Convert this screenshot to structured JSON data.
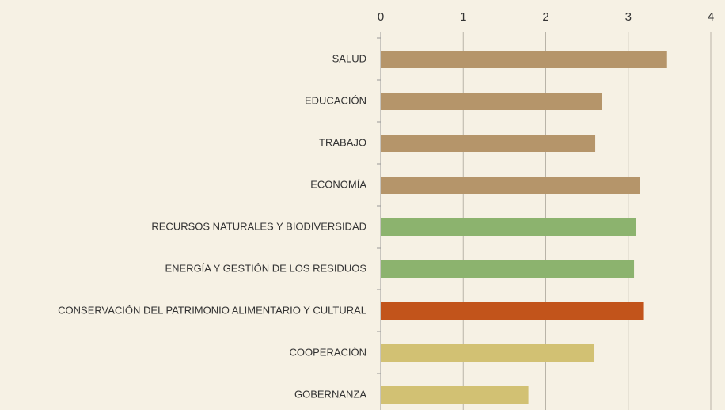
{
  "chart_data": {
    "type": "barh",
    "categories": [
      "SALUD",
      "EDUCACIÓN",
      "TRABAJO",
      "ECONOMÍA",
      "RECURSOS NATURALES Y BIODIVERSIDAD",
      "ENERGÍA Y GESTIÓN DE LOS RESIDUOS",
      "CONSERVACIÓN DEL PATRIMONIO ALIMENTARIO Y CULTURAL",
      "COOPERACIÓN",
      "GOBERNANZA"
    ],
    "values": [
      3.47,
      2.68,
      2.6,
      3.14,
      3.09,
      3.07,
      3.19,
      2.59,
      1.79
    ],
    "colors": [
      "#b5956a",
      "#b5956a",
      "#b5956a",
      "#b5956a",
      "#8cb36e",
      "#8cb36e",
      "#c2541b",
      "#d2c173",
      "#d2c173"
    ],
    "xlim": [
      0,
      4
    ],
    "xticks": [
      0,
      1,
      2,
      3,
      4
    ],
    "grid": true
  }
}
